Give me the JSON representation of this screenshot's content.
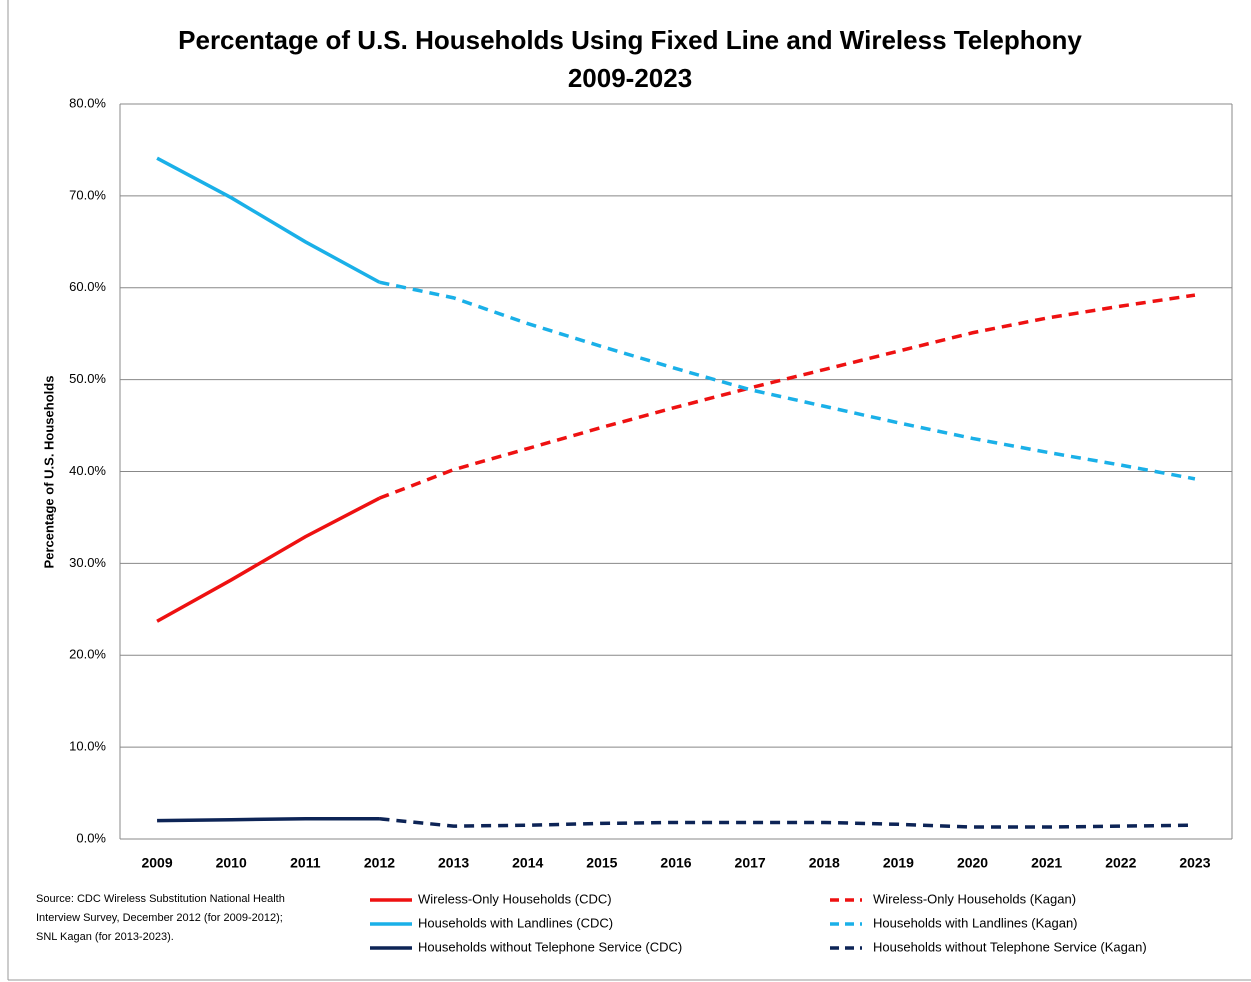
{
  "chart_data": {
    "type": "line",
    "title": "Percentage of U.S. Households Using Fixed Line and Wireless Telephony",
    "subtitle": "2009-2023",
    "y_label": "Percentage of U.S. Households",
    "categories": [
      "2009",
      "2010",
      "2011",
      "2012",
      "2013",
      "2014",
      "2015",
      "2016",
      "2017",
      "2018",
      "2019",
      "2020",
      "2021",
      "2022",
      "2023"
    ],
    "ylim": [
      0,
      80
    ],
    "yticks": [
      {
        "value": 0,
        "label": "0.0%"
      },
      {
        "value": 10,
        "label": "10.0%"
      },
      {
        "value": 20,
        "label": "20.0%"
      },
      {
        "value": 30,
        "label": "30.0%"
      },
      {
        "value": 40,
        "label": "40.0%"
      },
      {
        "value": 50,
        "label": "50.0%"
      },
      {
        "value": 60,
        "label": "60.0%"
      },
      {
        "value": 70,
        "label": "70.0%"
      },
      {
        "value": 80,
        "label": "80.0%"
      }
    ],
    "grid": true,
    "series": [
      {
        "name": "Wireless-Only Households (CDC)",
        "color": "#ee1111",
        "dashed": false,
        "values": [
          23.7,
          28.2,
          32.9,
          37.1,
          null,
          null,
          null,
          null,
          null,
          null,
          null,
          null,
          null,
          null,
          null
        ]
      },
      {
        "name": "Households with Landlines (CDC)",
        "color": "#1ab0e8",
        "dashed": false,
        "values": [
          74.1,
          69.8,
          65.0,
          60.6,
          null,
          null,
          null,
          null,
          null,
          null,
          null,
          null,
          null,
          null,
          null
        ]
      },
      {
        "name": "Households without Telephone Service (CDC)",
        "color": "#0d2456",
        "dashed": false,
        "values": [
          2.0,
          2.1,
          2.2,
          2.2,
          null,
          null,
          null,
          null,
          null,
          null,
          null,
          null,
          null,
          null,
          null
        ]
      },
      {
        "name": "Wireless-Only Households (Kagan)",
        "color": "#ee1111",
        "dashed": true,
        "values": [
          null,
          null,
          null,
          37.1,
          40.2,
          42.5,
          44.8,
          47.0,
          49.1,
          51.1,
          53.1,
          55.1,
          56.7,
          58.0,
          59.2
        ]
      },
      {
        "name": "Households with Landlines (Kagan)",
        "color": "#1ab0e8",
        "dashed": true,
        "values": [
          null,
          null,
          null,
          60.6,
          58.9,
          56.1,
          53.6,
          51.2,
          48.9,
          47.1,
          45.3,
          43.6,
          42.1,
          40.7,
          39.2
        ]
      },
      {
        "name": "Households without Telephone Service (Kagan)",
        "color": "#0d2456",
        "dashed": true,
        "values": [
          null,
          null,
          null,
          2.2,
          1.4,
          1.5,
          1.7,
          1.8,
          1.8,
          1.8,
          1.6,
          1.3,
          1.3,
          1.4,
          1.5
        ]
      }
    ],
    "source_lines": [
      "Source: CDC Wireless Substitution National Health",
      "Interview Survey, December 2012 (for 2009-2012);",
      "SNL Kagan (for 2013-2023)."
    ]
  }
}
